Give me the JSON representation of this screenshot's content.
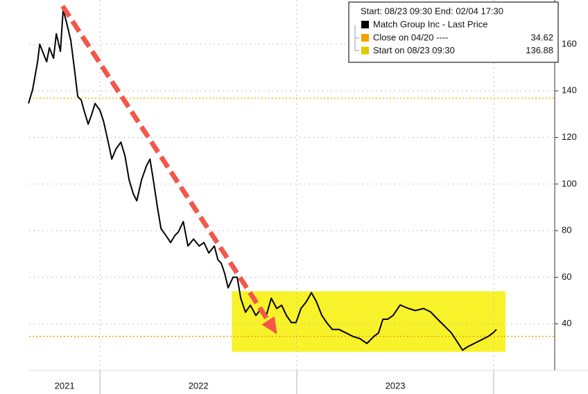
{
  "chart_data": {
    "type": "line",
    "legend_header": "Start: 08/23 09:30 End: 02/04 17:30",
    "series": [
      {
        "name": "Match Group Inc - Last Price",
        "color": "#000000",
        "x": [
          2021.637,
          2021.658,
          2021.683,
          2021.694,
          2021.708,
          2021.729,
          2021.743,
          2021.764,
          2021.778,
          2021.799,
          2021.813,
          2021.831,
          2021.852,
          2021.87,
          2021.887,
          2021.905,
          2021.919,
          2021.94,
          2021.958,
          2021.975,
          2022.0,
          2022.018,
          2022.042,
          2022.06,
          2022.081,
          2022.106,
          2022.127,
          2022.148,
          2022.169,
          2022.187,
          2022.211,
          2022.236,
          2022.254,
          2022.271,
          2022.292,
          2022.31,
          2022.335,
          2022.359,
          2022.38,
          2022.398,
          2022.423,
          2022.447,
          2022.475,
          2022.504,
          2022.528,
          2022.553,
          2022.581,
          2022.599,
          2022.616,
          2022.634,
          2022.651,
          2022.676,
          2022.697,
          2022.715,
          2022.739,
          2022.764,
          2022.792,
          2022.82,
          2022.845,
          2022.87,
          2022.898,
          2022.923,
          2022.947,
          2022.972,
          2022.996,
          2023.021,
          2023.049,
          2023.074,
          2023.099,
          2023.127,
          2023.151,
          2023.18,
          2023.215,
          2023.25,
          2023.285,
          2023.32,
          2023.356,
          2023.391,
          2023.415,
          2023.437,
          2023.461,
          2023.489,
          2023.525,
          2023.567,
          2023.602,
          2023.644,
          2023.68,
          2023.715,
          2023.75,
          2023.785,
          2023.82,
          2023.842,
          2023.866,
          2023.901,
          2023.937,
          2023.972,
          2023.996,
          2024.014
        ],
        "values": [
          134.6,
          140.6,
          152.5,
          160,
          157,
          152.5,
          158.5,
          154,
          164.5,
          157,
          175,
          169,
          161.5,
          149.5,
          137.6,
          136,
          131.6,
          125.7,
          130,
          134.6,
          131.6,
          127,
          118,
          110.7,
          115,
          118,
          112,
          101.8,
          95.8,
          92.8,
          101.8,
          107.8,
          110.7,
          101.8,
          89.9,
          80.9,
          77.9,
          74.9,
          77.9,
          79.4,
          83.9,
          73.4,
          76.4,
          73.4,
          74.9,
          70.4,
          73.4,
          67.5,
          66,
          61.5,
          55.5,
          60,
          60,
          51,
          45,
          48,
          43.6,
          46.6,
          43.6,
          51,
          46.6,
          48,
          43.6,
          40.6,
          40.6,
          46.6,
          49.6,
          53.4,
          49.6,
          43.6,
          40.6,
          37.6,
          37.6,
          36.1,
          34.6,
          33.7,
          31.6,
          34.6,
          36.1,
          42,
          42,
          43.6,
          48.1,
          46.6,
          45.7,
          46.6,
          45.1,
          42,
          39.1,
          36.1,
          31.6,
          28.7,
          30.1,
          31.6,
          33.1,
          34.6,
          36.1,
          37.6
        ]
      }
    ],
    "reference_lines": [
      {
        "name": "Close on 04/20 ----",
        "value": 34.62,
        "color": "#f5a000"
      },
      {
        "name": "Start on 08/23 09:30",
        "value": 136.88,
        "color": "#e0c800"
      }
    ],
    "highlight": {
      "x": [
        2022.67,
        2024.06
      ],
      "y": [
        28,
        54
      ],
      "color": "#f8f22a"
    },
    "arrow": {
      "from": [
        2021.81,
        176.4
      ],
      "to": [
        2022.9,
        35.5
      ],
      "color": "#f4564a"
    },
    "xlim": [
      2021.64,
      2024.31
    ],
    "xticks": [
      2022,
      2023,
      2024
    ],
    "year_labels": [
      "2021",
      "2022",
      "2023"
    ],
    "ylim": [
      20,
      179
    ],
    "yticks": [
      40,
      60,
      80,
      100,
      120,
      140,
      160
    ],
    "grid": true,
    "y_axis_side": "right"
  }
}
